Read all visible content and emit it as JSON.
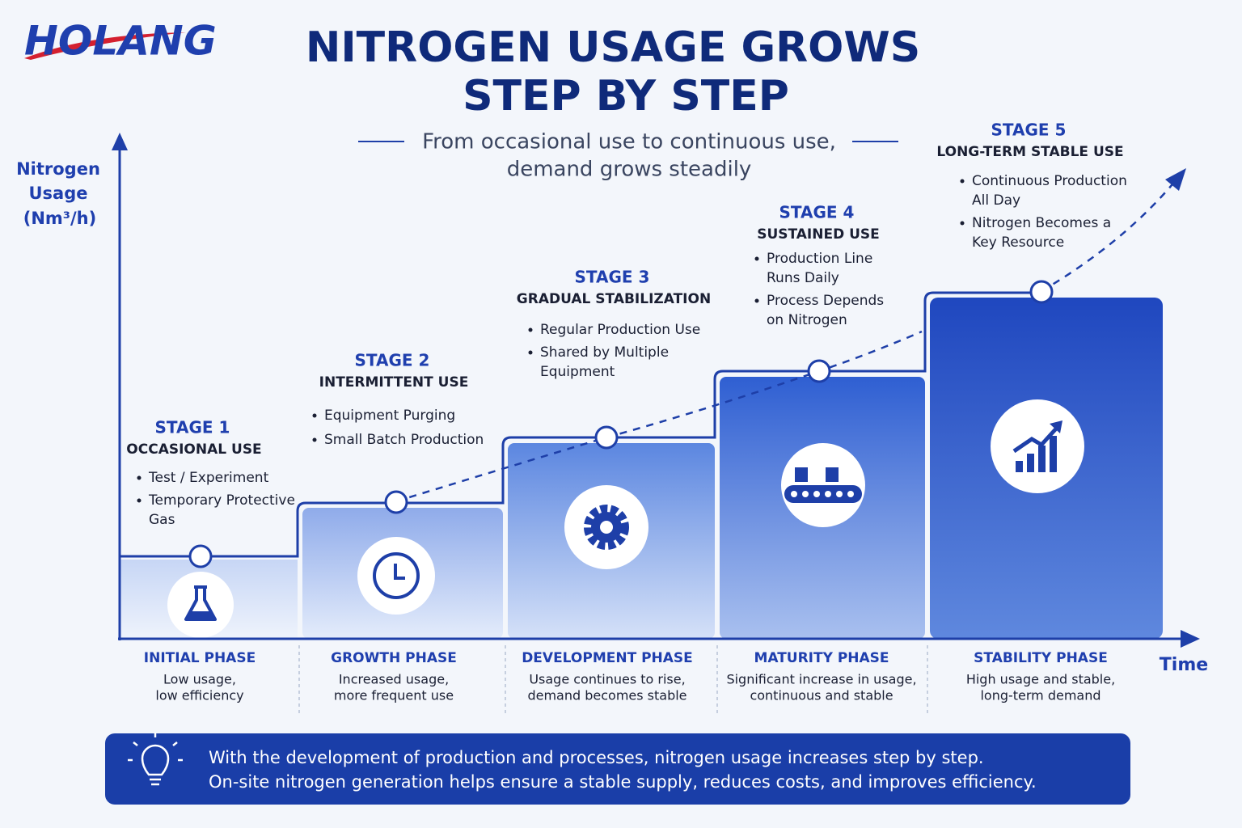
{
  "logo": "HOLANG",
  "title": [
    "NITROGEN USAGE GROWS",
    "STEP BY STEP"
  ],
  "subtitle": [
    "From occasional use to continuous use,",
    "demand grows steadily"
  ],
  "y_axis_label": [
    "Nitrogen",
    "Usage",
    "(Nm³/h)"
  ],
  "x_axis_label": "Time",
  "stages": [
    {
      "stage": "STAGE 1",
      "name": "OCCASIONAL USE",
      "bullets": [
        [
          "Test / Experiment"
        ],
        [
          "Temporary Protective",
          "Gas"
        ]
      ],
      "phase": "INITIAL PHASE",
      "phase_desc": [
        "Low usage,",
        "low efficiency"
      ]
    },
    {
      "stage": "STAGE 2",
      "name": "INTERMITTENT USE",
      "bullets": [
        [
          "Equipment Purging"
        ],
        [
          "Small Batch Production"
        ]
      ],
      "phase": "GROWTH PHASE",
      "phase_desc": [
        "Increased usage,",
        "more frequent use"
      ]
    },
    {
      "stage": "STAGE 3",
      "name": "GRADUAL STABILIZATION",
      "bullets": [
        [
          "Regular Production Use"
        ],
        [
          "Shared by Multiple",
          "Equipment"
        ]
      ],
      "phase": "DEVELOPMENT PHASE",
      "phase_desc": [
        "Usage continues to rise,",
        "demand becomes stable"
      ]
    },
    {
      "stage": "STAGE 4",
      "name": "SUSTAINED USE",
      "bullets": [
        [
          "Production Line",
          "Runs Daily"
        ],
        [
          "Process Depends",
          "on Nitrogen"
        ]
      ],
      "phase": "MATURITY PHASE",
      "phase_desc": [
        "Significant increase in usage,",
        "continuous and stable"
      ]
    },
    {
      "stage": "STAGE 5",
      "name": "LONG-TERM STABLE USE",
      "bullets": [
        [
          "Continuous Production",
          "All Day"
        ],
        [
          "Nitrogen Becomes a",
          "Key Resource"
        ]
      ],
      "phase": "STABILITY PHASE",
      "phase_desc": [
        "High usage and stable,",
        "long-term demand"
      ]
    }
  ],
  "footer": [
    "With the development of production and processes, nitrogen usage increases step by step.",
    "On-site nitrogen generation helps ensure a stable supply, reduces costs, and improves efficiency."
  ]
}
